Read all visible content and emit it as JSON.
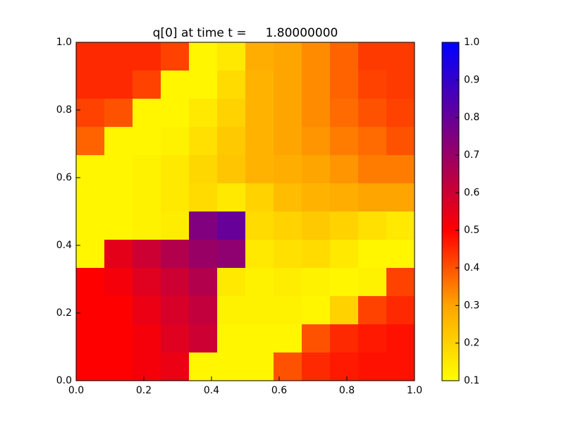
{
  "chart_data": {
    "type": "heatmap",
    "title": "q[0] at time t =     1.80000000",
    "xlim": [
      0,
      1
    ],
    "ylim": [
      0,
      1
    ],
    "xticks": [
      {
        "value": 0,
        "label": "0.0"
      },
      0.2,
      0.4,
      0.6,
      0.8,
      {
        "value": 1,
        "label": "1.0"
      }
    ],
    "yticks": [
      {
        "value": 0,
        "label": "0.0"
      },
      0.2,
      0.4,
      0.6,
      0.8,
      {
        "value": 1,
        "label": "1.0"
      }
    ],
    "z": [
      [
        0.45,
        0.45,
        0.45,
        0.42,
        0.12,
        0.15,
        0.28,
        0.3,
        0.33,
        0.38,
        0.43,
        0.43
      ],
      [
        0.45,
        0.45,
        0.42,
        0.12,
        0.12,
        0.18,
        0.27,
        0.3,
        0.33,
        0.38,
        0.42,
        0.43
      ],
      [
        0.42,
        0.4,
        0.12,
        0.12,
        0.15,
        0.2,
        0.27,
        0.3,
        0.33,
        0.37,
        0.4,
        0.42
      ],
      [
        0.38,
        0.12,
        0.12,
        0.13,
        0.17,
        0.22,
        0.27,
        0.3,
        0.32,
        0.35,
        0.37,
        0.4
      ],
      [
        0.12,
        0.12,
        0.13,
        0.15,
        0.19,
        0.23,
        0.27,
        0.28,
        0.3,
        0.32,
        0.35,
        0.35
      ],
      [
        0.12,
        0.12,
        0.13,
        0.15,
        0.18,
        0.15,
        0.2,
        0.25,
        0.27,
        0.28,
        0.3,
        0.3
      ],
      [
        0.12,
        0.12,
        0.13,
        0.14,
        0.75,
        0.8,
        0.18,
        0.2,
        0.22,
        0.2,
        0.17,
        0.15
      ],
      [
        0.12,
        0.55,
        0.6,
        0.65,
        0.7,
        0.72,
        0.15,
        0.17,
        0.18,
        0.15,
        0.12,
        0.12
      ],
      [
        0.5,
        0.52,
        0.56,
        0.6,
        0.65,
        0.15,
        0.13,
        0.14,
        0.13,
        0.12,
        0.13,
        0.42
      ],
      [
        0.5,
        0.5,
        0.54,
        0.58,
        0.62,
        0.13,
        0.13,
        0.13,
        0.12,
        0.2,
        0.42,
        0.45
      ],
      [
        0.5,
        0.5,
        0.52,
        0.56,
        0.6,
        0.12,
        0.12,
        0.12,
        0.4,
        0.45,
        0.47,
        0.48
      ],
      [
        0.5,
        0.5,
        0.52,
        0.54,
        0.12,
        0.12,
        0.12,
        0.4,
        0.45,
        0.47,
        0.48,
        0.48
      ]
    ],
    "colormap": [
      {
        "value": 0.1,
        "color": "#ffff00"
      },
      {
        "value": 0.3,
        "color": "#ffa500"
      },
      {
        "value": 0.5,
        "color": "#ff0000"
      },
      {
        "value": 1.0,
        "color": "#0000ff"
      }
    ],
    "clim": [
      0.1,
      1.0
    ],
    "cticks": [
      0.1,
      0.2,
      0.3,
      0.4,
      0.5,
      0.6,
      0.7,
      0.8,
      0.9,
      {
        "value": 1.0,
        "label": "1.0"
      }
    ]
  }
}
